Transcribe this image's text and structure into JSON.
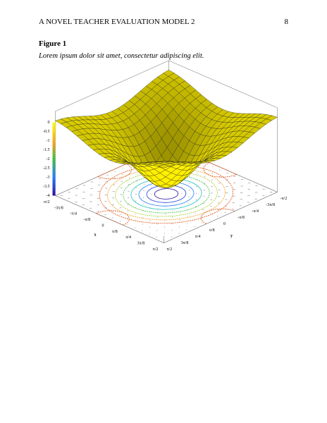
{
  "header": {
    "title": "A NOVEL TEACHER EVALUATION MODEL 2",
    "page": 8
  },
  "figure": {
    "label": "Figure 1",
    "caption": "Lorem ipsum dolor sit amet, consectetur adipiscing elit.",
    "colorbar_ticks": [
      "0",
      "-0.5",
      "-1",
      "-1.5",
      "-2",
      "-2.5",
      "-3",
      "-3.5",
      "-4"
    ],
    "x_axis": {
      "label": "x",
      "ticks": [
        "-π/2",
        "-3π/8",
        "-π/4",
        "-π/8",
        "0",
        "π/8",
        "π/4",
        "3π/8",
        "π/2"
      ]
    },
    "y_axis": {
      "label": "y",
      "ticks": [
        "π/2",
        "3π/8",
        "π/4",
        "π/8",
        "0",
        "-π/8",
        "-π/4",
        "-3π/8",
        "-π/2"
      ]
    }
  }
}
